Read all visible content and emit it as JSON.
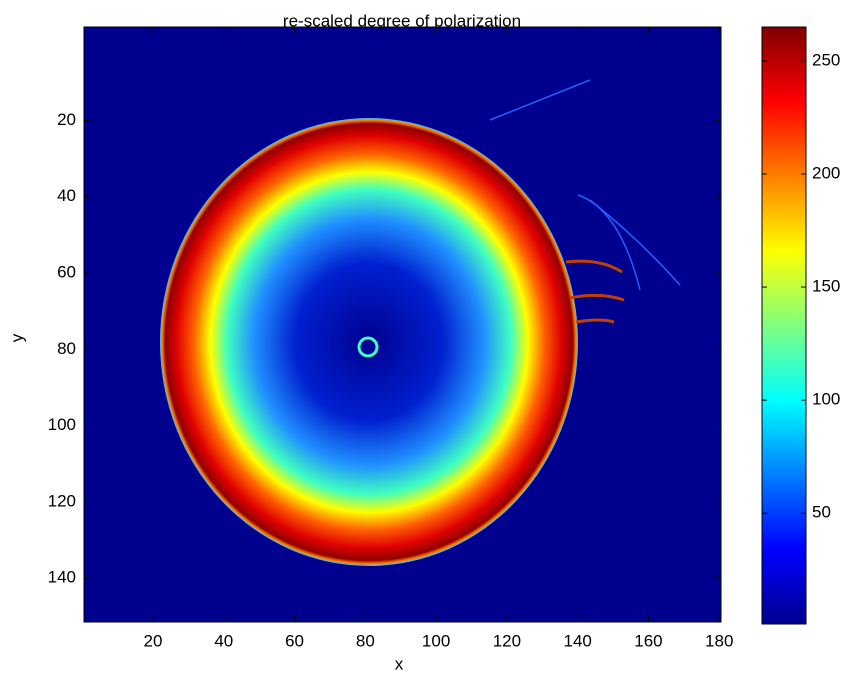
{
  "chart_data": {
    "type": "heatmap",
    "title": "re-scaled degree of polarization",
    "x_label": "x",
    "y_label": "y",
    "xlim": [
      0.5,
      180.5
    ],
    "xticks": [
      20,
      40,
      60,
      80,
      100,
      120,
      140,
      160,
      180
    ],
    "ylim": [
      -4.5,
      151.5
    ],
    "yticks": [
      20,
      40,
      60,
      80,
      100,
      120,
      140
    ],
    "y_reversed": true,
    "colormap": "jet",
    "colorbar": {
      "lim": [
        1,
        265
      ],
      "ticks": [
        50,
        100,
        150,
        200,
        250
      ]
    }
  }
}
